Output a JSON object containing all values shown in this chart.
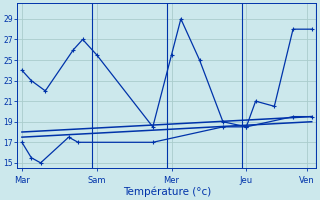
{
  "title": "Température (°c)",
  "bg_color": "#cce8ec",
  "grid_color": "#aacccc",
  "line_color": "#0033aa",
  "x_tick_labels": [
    "Mar",
    "Sam",
    "Mer",
    "Jeu",
    "Ven"
  ],
  "ylim": [
    14.5,
    30.5
  ],
  "yticks": [
    15,
    17,
    19,
    21,
    23,
    25,
    27,
    29
  ],
  "xlim": [
    0,
    32
  ],
  "vlines": [
    8,
    16,
    24,
    32
  ],
  "x_tick_positions": [
    0.5,
    8.5,
    16.5,
    24.5,
    31.0
  ],
  "line1_x": [
    0.5,
    1.5,
    3.0,
    6.0,
    7.0,
    8.5,
    14.5,
    16.5,
    17.5,
    19.5,
    22.0,
    24.5,
    25.5,
    27.5,
    29.5,
    31.5
  ],
  "line1_y": [
    24,
    23,
    22,
    26,
    27,
    25.5,
    18.5,
    25.5,
    29,
    25,
    19,
    18.5,
    21,
    20.5,
    28,
    28
  ],
  "line2_x": [
    0.5,
    1.5,
    2.5,
    5.5,
    6.5,
    14.5,
    22.0,
    24.5,
    29.5,
    31.5
  ],
  "line2_y": [
    17,
    15.5,
    15,
    17.5,
    17,
    17,
    18.5,
    18.5,
    19.5,
    19.5
  ],
  "line3_x": [
    0.5,
    31.5
  ],
  "line3_y": [
    17.5,
    19.0
  ],
  "line4_x": [
    0.5,
    31.5
  ],
  "line4_y": [
    18.0,
    19.5
  ]
}
